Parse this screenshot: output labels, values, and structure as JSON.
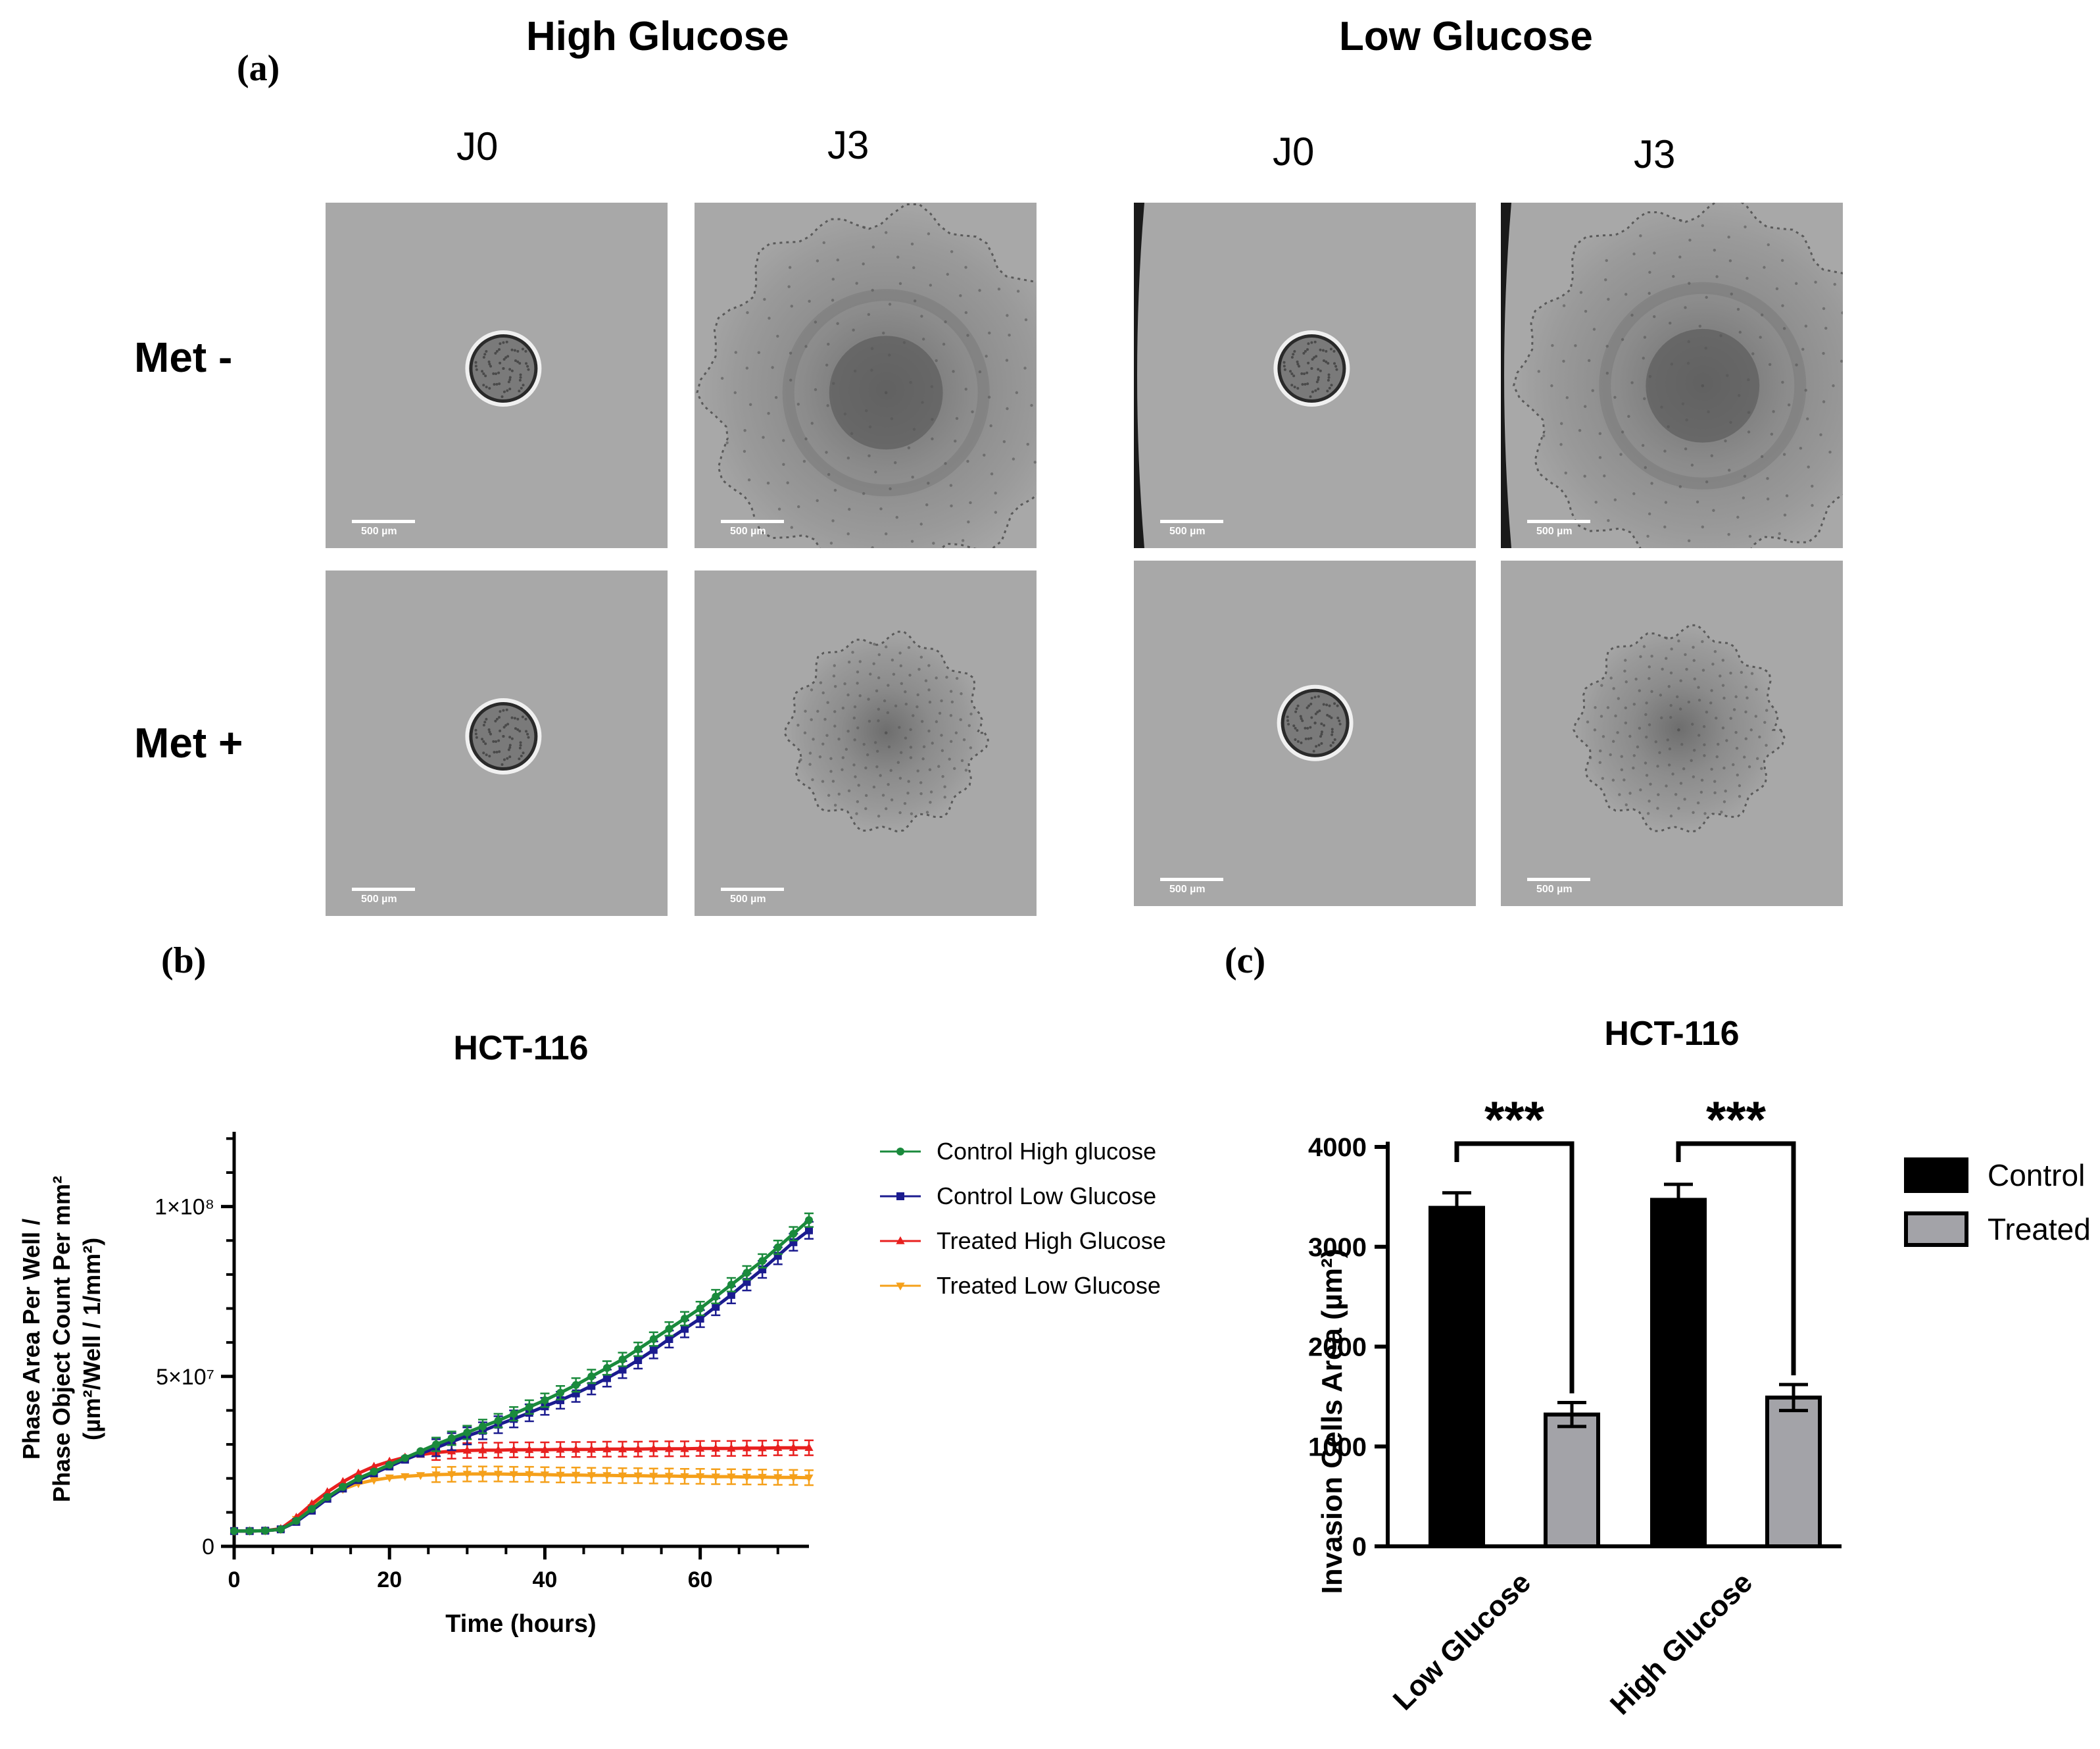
{
  "panel_labels": {
    "a": "(a)",
    "b": "(b)",
    "c": "(c)"
  },
  "microscopy": {
    "groups": [
      {
        "title": "High Glucose",
        "days": [
          "J0",
          "J3"
        ]
      },
      {
        "title": "Low Glucose",
        "days": [
          "J0",
          "J3"
        ]
      }
    ],
    "rows": [
      "Met -",
      "Met +"
    ],
    "scale_bar_label": "500 µm",
    "images": [
      {
        "id": "hg-j0-metminus",
        "content": "small spheroid"
      },
      {
        "id": "hg-j3-metminus",
        "content": "large invasive spheroid"
      },
      {
        "id": "hg-j0-metplus",
        "content": "small spheroid"
      },
      {
        "id": "hg-j3-metplus",
        "content": "medium spheroid"
      },
      {
        "id": "lg-j0-metminus",
        "content": "small spheroid"
      },
      {
        "id": "lg-j3-metminus",
        "content": "large invasive spheroid"
      },
      {
        "id": "lg-j0-metplus",
        "content": "small spheroid"
      },
      {
        "id": "lg-j3-metplus",
        "content": "medium spheroid"
      }
    ]
  },
  "chart_data": [
    {
      "type": "line",
      "title": "HCT-116",
      "xlabel": "Time (hours)",
      "ylabel_lines": [
        "Phase Area Per Well /",
        "Phase Object Count Per mm²",
        "(µm²/Well / 1/mm²)"
      ],
      "xlim": [
        0,
        74
      ],
      "ylim": [
        0,
        122000000
      ],
      "x_ticks": [
        0,
        20,
        40,
        60
      ],
      "x_tick_labels": [
        "0",
        "20",
        "40",
        "60"
      ],
      "y_ticks": [
        0,
        50000000,
        100000000
      ],
      "y_tick_labels": [
        "0",
        "5×10⁷",
        "1×10⁸"
      ],
      "legend_position": "right",
      "series": [
        {
          "name": "Control High glucose",
          "color": "#1a8a3c",
          "marker": "circle",
          "x": [
            0,
            2,
            4,
            6,
            8,
            10,
            12,
            14,
            16,
            18,
            20,
            22,
            24,
            26,
            28,
            30,
            32,
            34,
            36,
            38,
            40,
            42,
            44,
            46,
            48,
            50,
            52,
            54,
            56,
            58,
            60,
            62,
            64,
            66,
            68,
            70,
            72,
            74
          ],
          "y": [
            4500000,
            4500000,
            4600000,
            5000000,
            7500000,
            11000000,
            14500000,
            17500000,
            20000000,
            22000000,
            24000000,
            26000000,
            28000000,
            30000000,
            31800000,
            33500000,
            35300000,
            37000000,
            39000000,
            41000000,
            43000000,
            45200000,
            47500000,
            50000000,
            52500000,
            55000000,
            58000000,
            61000000,
            64000000,
            67000000,
            70000000,
            73500000,
            77000000,
            80500000,
            84000000,
            88000000,
            92000000,
            96000000
          ],
          "error": 2000000
        },
        {
          "name": "Control Low Glucose",
          "color": "#1b1b8f",
          "marker": "square",
          "x": [
            0,
            2,
            4,
            6,
            8,
            10,
            12,
            14,
            16,
            18,
            20,
            22,
            24,
            26,
            28,
            30,
            32,
            34,
            36,
            38,
            40,
            42,
            44,
            46,
            48,
            50,
            52,
            54,
            56,
            58,
            60,
            62,
            64,
            66,
            68,
            70,
            72,
            74
          ],
          "y": [
            4500000,
            4500000,
            4600000,
            5000000,
            7200000,
            10500000,
            14000000,
            17000000,
            19500000,
            21500000,
            23500000,
            25500000,
            27300000,
            29000000,
            30800000,
            32500000,
            34000000,
            35800000,
            37500000,
            39300000,
            41200000,
            43000000,
            45000000,
            47200000,
            49500000,
            52000000,
            54800000,
            57800000,
            61000000,
            64000000,
            67000000,
            70500000,
            74000000,
            77800000,
            81500000,
            85500000,
            89500000,
            93000000
          ],
          "error": 2500000
        },
        {
          "name": "Treated High Glucose",
          "color": "#e8201f",
          "marker": "triangle-up",
          "x": [
            0,
            2,
            4,
            6,
            8,
            10,
            12,
            14,
            16,
            18,
            20,
            22,
            24,
            26,
            28,
            30,
            32,
            34,
            36,
            38,
            40,
            42,
            44,
            46,
            48,
            50,
            52,
            54,
            56,
            58,
            60,
            62,
            64,
            66,
            68,
            70,
            72,
            74
          ],
          "y": [
            4500000,
            4500000,
            4600000,
            5200000,
            8500000,
            12500000,
            16000000,
            19000000,
            21500000,
            23500000,
            25000000,
            26200000,
            27000000,
            27600000,
            28000000,
            28200000,
            28300000,
            28300000,
            28400000,
            28400000,
            28400000,
            28500000,
            28500000,
            28500000,
            28600000,
            28600000,
            28600000,
            28700000,
            28700000,
            28700000,
            28800000,
            28800000,
            28800000,
            28900000,
            28900000,
            29000000,
            29000000,
            29000000
          ],
          "error": 2200000
        },
        {
          "name": "Treated Low Glucose",
          "color": "#f5a01a",
          "marker": "triangle-down",
          "x": [
            0,
            2,
            4,
            6,
            8,
            10,
            12,
            14,
            16,
            18,
            20,
            22,
            24,
            26,
            28,
            30,
            32,
            34,
            36,
            38,
            40,
            42,
            44,
            46,
            48,
            50,
            52,
            54,
            56,
            58,
            60,
            62,
            64,
            66,
            68,
            70,
            72,
            74
          ],
          "y": [
            4500000,
            4500000,
            4600000,
            5000000,
            8000000,
            11500000,
            14500000,
            16800000,
            18500000,
            19500000,
            20200000,
            20600000,
            20900000,
            21100000,
            21200000,
            21300000,
            21300000,
            21300000,
            21200000,
            21200000,
            21100000,
            21000000,
            21000000,
            20900000,
            20900000,
            20800000,
            20800000,
            20700000,
            20700000,
            20600000,
            20600000,
            20500000,
            20500000,
            20400000,
            20400000,
            20300000,
            20300000,
            20200000
          ],
          "error": 2200000
        }
      ]
    },
    {
      "type": "bar",
      "title": "HCT-116",
      "ylabel": "Invasion Cells Area (µm²)",
      "ylim": [
        0,
        4000
      ],
      "y_ticks": [
        0,
        1000,
        2000,
        3000,
        4000
      ],
      "categories": [
        "Low Glucose",
        "High Glucose"
      ],
      "legend_position": "right",
      "series": [
        {
          "name": "Control",
          "color": "#000000",
          "values": [
            3390,
            3470
          ],
          "errors": [
            150,
            155
          ]
        },
        {
          "name": "Treated",
          "color": "#a3a3a8",
          "values": [
            1320,
            1490
          ],
          "errors": [
            120,
            130
          ]
        }
      ],
      "annotations": [
        "***",
        "***"
      ]
    }
  ]
}
